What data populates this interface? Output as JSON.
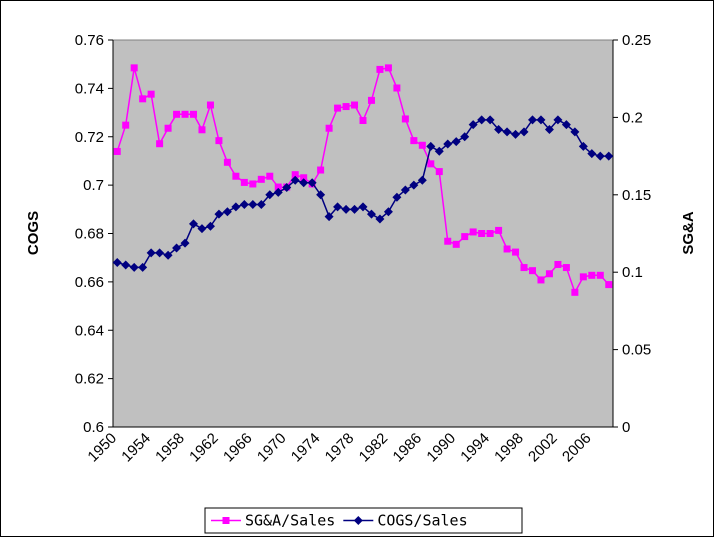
{
  "chart_data": {
    "type": "line",
    "ylabel": "COGS",
    "y2label": "SG&A",
    "categories": [
      "1950",
      null,
      null,
      null,
      "1954",
      null,
      null,
      null,
      "1958",
      null,
      null,
      null,
      "1962",
      null,
      null,
      null,
      "1966",
      null,
      null,
      null,
      "1970",
      null,
      null,
      null,
      "1974",
      null,
      null,
      null,
      "1978",
      null,
      null,
      null,
      "1982",
      null,
      null,
      null,
      "1986",
      null,
      null,
      null,
      "1990",
      null,
      null,
      null,
      "1994",
      null,
      null,
      null,
      "1998",
      null,
      null,
      null,
      "2002",
      null,
      null,
      null,
      "2006",
      null,
      null
    ],
    "series": [
      {
        "name": "SG&A/Sales",
        "color": "#ff00ff",
        "marker": "square",
        "axis": "y2",
        "values": [
          0.178,
          0.195,
          0.232,
          0.212,
          0.215,
          0.183,
          0.193,
          0.202,
          0.202,
          0.202,
          0.192,
          0.208,
          0.185,
          0.171,
          0.162,
          0.158,
          0.157,
          0.16,
          0.162,
          0.155,
          0.155,
          0.163,
          0.161,
          0.157,
          0.166,
          0.193,
          0.206,
          0.207,
          0.208,
          0.198,
          0.211,
          0.231,
          0.232,
          0.219,
          0.199,
          0.185,
          0.182,
          0.17,
          0.165,
          0.12,
          0.118,
          0.123,
          0.126,
          0.125,
          0.125,
          0.127,
          0.115,
          0.113,
          0.103,
          0.101,
          0.095,
          0.099,
          0.105,
          0.103,
          0.087,
          0.097,
          0.098,
          0.098,
          0.092
        ]
      },
      {
        "name": "COGS/Sales",
        "color": "#000080",
        "marker": "diamond",
        "values": [
          0.668,
          0.667,
          0.666,
          0.666,
          0.672,
          0.672,
          0.671,
          0.674,
          0.676,
          0.684,
          0.682,
          0.683,
          0.688,
          0.689,
          0.691,
          0.692,
          0.692,
          0.692,
          0.696,
          0.697,
          0.699,
          0.702,
          0.701,
          0.701,
          0.696,
          0.687,
          0.691,
          0.69,
          0.69,
          0.691,
          0.688,
          0.686,
          0.689,
          0.695,
          0.698,
          0.7,
          0.702,
          0.716,
          0.714,
          0.717,
          0.718,
          0.72,
          0.725,
          0.727,
          0.727,
          0.723,
          0.722,
          0.721,
          0.722,
          0.727,
          0.727,
          0.723,
          0.727,
          0.725,
          0.722,
          0.716,
          0.713,
          0.712,
          0.712
        ]
      }
    ],
    "ylim": [
      0.6,
      0.76
    ],
    "yticks": [
      0.6,
      0.62,
      0.64,
      0.66,
      0.68,
      0.7,
      0.72,
      0.74,
      0.76
    ],
    "y2lim": [
      0,
      0.25
    ],
    "y2ticks": [
      0,
      0.05,
      0.1,
      0.15,
      0.2,
      0.25
    ],
    "plot_background": "#c0c0c0",
    "legend": "bottom"
  }
}
